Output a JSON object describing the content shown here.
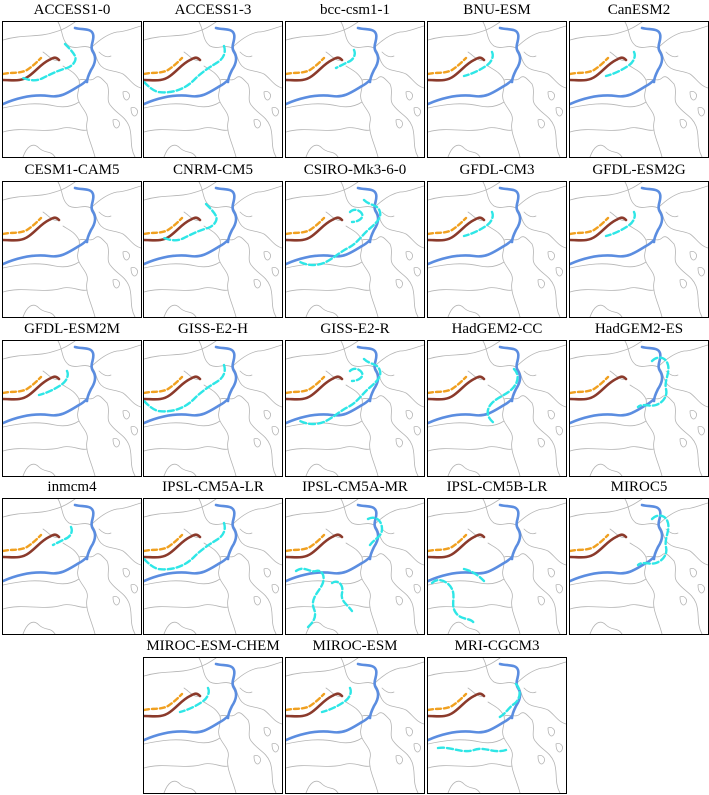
{
  "colors": {
    "coastline": "#b4b4b4",
    "observed_north": "#5b8de0",
    "observed_south": "#5b8de0",
    "brown": "#8b3a2b",
    "orange": "#f0a020",
    "model": "#2ee6e6",
    "frame": "#000000"
  },
  "panels": [
    {
      "title": "ACCESS1-0",
      "variant": "classic"
    },
    {
      "title": "ACCESS1-3",
      "variant": "south"
    },
    {
      "title": "bcc-csm1-1",
      "variant": "shortNorth"
    },
    {
      "title": "BNU-ESM",
      "variant": "near"
    },
    {
      "title": "CanESM2",
      "variant": "near"
    },
    {
      "title": "CESM1-CAM5",
      "variant": "noModel"
    },
    {
      "title": "CNRM-CM5",
      "variant": "classic"
    },
    {
      "title": "CSIRO-Mk3-6-0",
      "variant": "zigzag"
    },
    {
      "title": "GFDL-CM3",
      "variant": "near"
    },
    {
      "title": "GFDL-ESM2G",
      "variant": "near"
    },
    {
      "title": "GFDL-ESM2M",
      "variant": "near"
    },
    {
      "title": "GISS-E2-H",
      "variant": "south"
    },
    {
      "title": "GISS-E2-R",
      "variant": "zigzag"
    },
    {
      "title": "HadGEM2-CC",
      "variant": "wave"
    },
    {
      "title": "HadGEM2-ES",
      "variant": "loopRight"
    },
    {
      "title": "inmcm4",
      "variant": "shortNorth"
    },
    {
      "title": "IPSL-CM5A-LR",
      "variant": "south"
    },
    {
      "title": "IPSL-CM5A-MR",
      "variant": "scattered"
    },
    {
      "title": "IPSL-CM5B-LR",
      "variant": "scattered2"
    },
    {
      "title": "MIROC5",
      "variant": "loopRight"
    },
    {
      "title": "MIROC-ESM-CHEM",
      "variant": "near"
    },
    {
      "title": "MIROC-ESM",
      "variant": "near"
    },
    {
      "title": "MRI-CGCM3",
      "variant": "mriSouth"
    }
  ]
}
